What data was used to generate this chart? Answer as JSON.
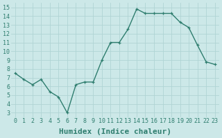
{
  "x": [
    0,
    1,
    2,
    3,
    4,
    5,
    6,
    7,
    8,
    9,
    10,
    11,
    12,
    13,
    14,
    15,
    16,
    17,
    18,
    19,
    20,
    21,
    22,
    23
  ],
  "y": [
    7.5,
    6.8,
    6.2,
    6.8,
    5.4,
    4.8,
    3.0,
    6.2,
    6.5,
    6.5,
    9.0,
    11.0,
    11.0,
    12.5,
    14.8,
    14.3,
    14.3,
    14.3,
    14.3,
    13.3,
    12.7,
    10.7,
    8.8,
    8.5
  ],
  "line_color": "#2e7d6e",
  "marker": "+",
  "marker_size": 3,
  "line_width": 1.0,
  "bg_color": "#cce8e8",
  "grid_color": "#b0d4d4",
  "xlabel": "Humidex (Indice chaleur)",
  "xlabel_fontsize": 8,
  "tick_color": "#2e7d6e",
  "tick_fontsize": 6,
  "xlim": [
    -0.5,
    23.5
  ],
  "ylim": [
    2.5,
    15.5
  ],
  "yticks": [
    3,
    4,
    5,
    6,
    7,
    8,
    9,
    10,
    11,
    12,
    13,
    14,
    15
  ],
  "xticks": [
    0,
    1,
    2,
    3,
    4,
    5,
    6,
    7,
    8,
    9,
    10,
    11,
    12,
    13,
    14,
    15,
    16,
    17,
    18,
    19,
    20,
    21,
    22,
    23
  ]
}
